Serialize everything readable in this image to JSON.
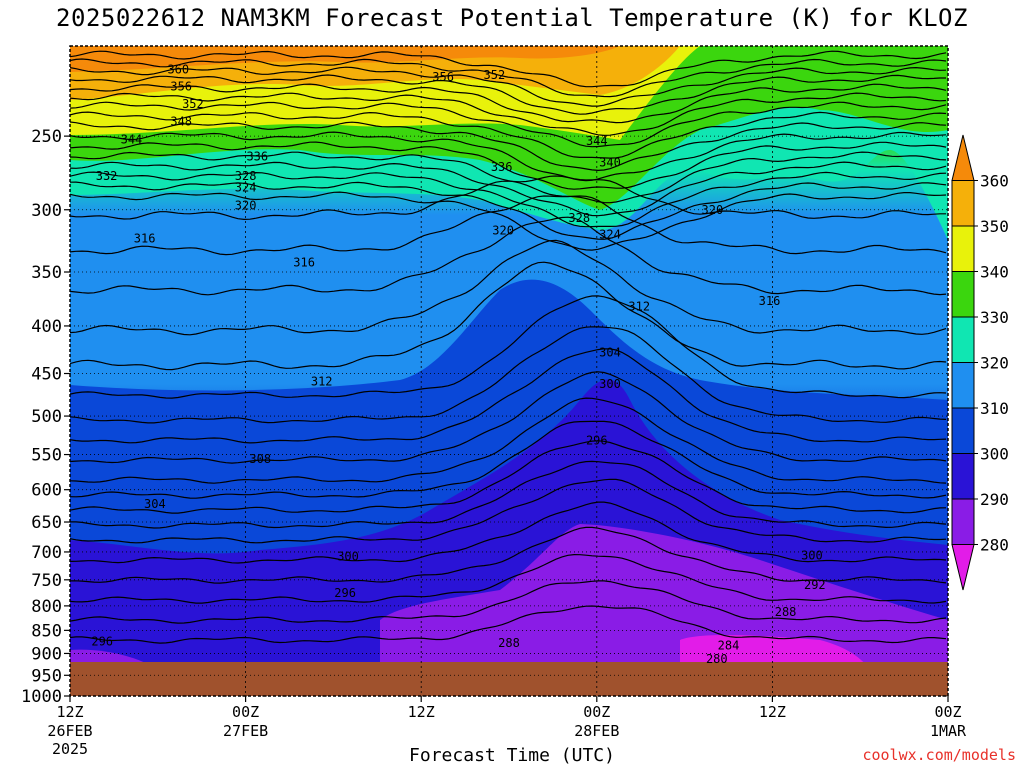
{
  "title": "2025022612 NAM3KM Forecast Potential Temperature (K) for KLOZ",
  "xlabel": "Forecast Time (UTC)",
  "credit": "coolwx.com/models",
  "chart_data": {
    "type": "heatmap",
    "title": "2025022612 NAM3KM Forecast Potential Temperature (K) for KLOZ",
    "xlabel": "Forecast Time (UTC)",
    "ylabel": "",
    "y_scale": "log-pressure (hPa)",
    "y_ticks": [
      250,
      300,
      350,
      400,
      450,
      500,
      550,
      600,
      650,
      700,
      750,
      800,
      850,
      900,
      950,
      1000
    ],
    "x_ticks": [
      {
        "hour": 0,
        "label": "12Z",
        "sub": "26FEB",
        "sub2": "2025"
      },
      {
        "hour": 12,
        "label": "00Z",
        "sub": "27FEB"
      },
      {
        "hour": 24,
        "label": "12Z",
        "sub": ""
      },
      {
        "hour": 36,
        "label": "00Z",
        "sub": "28FEB"
      },
      {
        "hour": 48,
        "label": "12Z",
        "sub": ""
      },
      {
        "hour": 60,
        "label": "00Z",
        "sub": "1MAR"
      }
    ],
    "xlim_hours": [
      0,
      60
    ],
    "ylim_hpa": [
      200,
      1000
    ],
    "colorbar": {
      "levels": [
        280,
        290,
        300,
        310,
        320,
        330,
        340,
        350,
        360
      ],
      "colors": [
        "#e21ce8",
        "#8a1ce6",
        "#2a13d6",
        "#0a48d8",
        "#1f8ff0",
        "#10e6b2",
        "#3bd60e",
        "#e8f20b",
        "#f5b00a",
        "#f58a0a"
      ]
    },
    "contour_labels": [
      {
        "hour": 7.4,
        "hpa": 212,
        "value": "360"
      },
      {
        "hour": 7.6,
        "hpa": 221,
        "value": "356"
      },
      {
        "hour": 8.4,
        "hpa": 231,
        "value": "352"
      },
      {
        "hour": 7.6,
        "hpa": 241,
        "value": "348"
      },
      {
        "hour": 4.2,
        "hpa": 252,
        "value": "344"
      },
      {
        "hour": 2.5,
        "hpa": 276,
        "value": "332"
      },
      {
        "hour": 12.8,
        "hpa": 263,
        "value": "336"
      },
      {
        "hour": 12.0,
        "hpa": 276,
        "value": "328"
      },
      {
        "hour": 12.0,
        "hpa": 284,
        "value": "324"
      },
      {
        "hour": 12.0,
        "hpa": 297,
        "value": "320"
      },
      {
        "hour": 5.1,
        "hpa": 322,
        "value": "316"
      },
      {
        "hour": 16.0,
        "hpa": 342,
        "value": "316"
      },
      {
        "hour": 25.5,
        "hpa": 216,
        "value": "356"
      },
      {
        "hour": 29.0,
        "hpa": 215,
        "value": "352"
      },
      {
        "hour": 36.0,
        "hpa": 253,
        "value": "344"
      },
      {
        "hour": 36.9,
        "hpa": 267,
        "value": "340"
      },
      {
        "hour": 29.5,
        "hpa": 270,
        "value": "336"
      },
      {
        "hour": 34.8,
        "hpa": 306,
        "value": "328"
      },
      {
        "hour": 36.9,
        "hpa": 319,
        "value": "324"
      },
      {
        "hour": 29.6,
        "hpa": 316,
        "value": "320"
      },
      {
        "hour": 43.9,
        "hpa": 300,
        "value": "320"
      },
      {
        "hour": 38.9,
        "hpa": 381,
        "value": "312"
      },
      {
        "hour": 47.8,
        "hpa": 376,
        "value": "316"
      },
      {
        "hour": 17.2,
        "hpa": 459,
        "value": "312"
      },
      {
        "hour": 36.9,
        "hpa": 427,
        "value": "304"
      },
      {
        "hour": 36.9,
        "hpa": 462,
        "value": "300"
      },
      {
        "hour": 36.0,
        "hpa": 531,
        "value": "296"
      },
      {
        "hour": 13.0,
        "hpa": 556,
        "value": "308"
      },
      {
        "hour": 5.8,
        "hpa": 622,
        "value": "304"
      },
      {
        "hour": 19.0,
        "hpa": 708,
        "value": "300"
      },
      {
        "hour": 18.8,
        "hpa": 775,
        "value": "296"
      },
      {
        "hour": 2.2,
        "hpa": 874,
        "value": "296"
      },
      {
        "hour": 30.0,
        "hpa": 877,
        "value": "288"
      },
      {
        "hour": 45.0,
        "hpa": 882,
        "value": "284"
      },
      {
        "hour": 44.2,
        "hpa": 913,
        "value": "280"
      },
      {
        "hour": 48.9,
        "hpa": 812,
        "value": "288"
      },
      {
        "hour": 50.9,
        "hpa": 760,
        "value": "292"
      },
      {
        "hour": 50.7,
        "hpa": 706,
        "value": "300"
      }
    ]
  }
}
